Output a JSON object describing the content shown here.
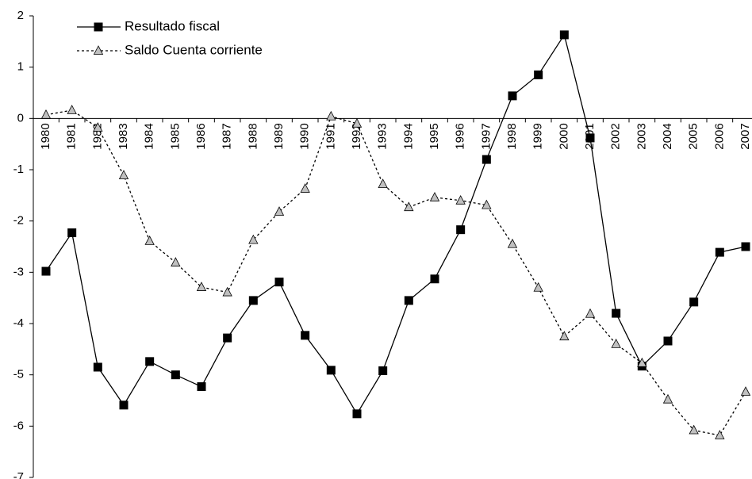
{
  "chart_data": {
    "type": "line",
    "categories": [
      "1980",
      "1981",
      "1982",
      "1983",
      "1984",
      "1985",
      "1986",
      "1987",
      "1988",
      "1989",
      "1990",
      "1991",
      "1992",
      "1993",
      "1994",
      "1995",
      "1996",
      "1997",
      "1998",
      "1999",
      "2000",
      "2001",
      "2002",
      "2003",
      "2004",
      "2005",
      "2006",
      "2007"
    ],
    "series": [
      {
        "name": "Resultado fiscal",
        "color": "#000000",
        "marker": "square",
        "dash": "solid",
        "values": [
          -2.98,
          -2.23,
          -4.85,
          -5.59,
          -4.74,
          -5.0,
          -5.23,
          -4.28,
          -3.55,
          -3.19,
          -4.23,
          -4.91,
          -5.76,
          -4.92,
          -3.55,
          -3.13,
          -2.17,
          -0.8,
          0.44,
          0.85,
          1.63,
          -0.38,
          -3.8,
          -4.83,
          -4.34,
          -3.58,
          -2.61,
          -2.5
        ]
      },
      {
        "name": "Saldo Cuenta corriente",
        "color": "#c0c0c0",
        "marker": "triangle",
        "dash": "dotted",
        "values": [
          0.07,
          0.16,
          -0.18,
          -1.11,
          -2.39,
          -2.81,
          -3.29,
          -3.39,
          -2.37,
          -1.82,
          -1.37,
          0.04,
          -0.1,
          -1.28,
          -1.73,
          -1.54,
          -1.6,
          -1.69,
          -2.45,
          -3.3,
          -4.25,
          -3.81,
          -4.4,
          -4.77,
          -5.48,
          -6.08,
          -6.18,
          -5.33
        ]
      }
    ],
    "ylim": [
      -7,
      2
    ],
    "yticks": [
      -7,
      -6,
      -5,
      -4,
      -3,
      -2,
      -1,
      0,
      1,
      2
    ],
    "legend": "upper left"
  }
}
